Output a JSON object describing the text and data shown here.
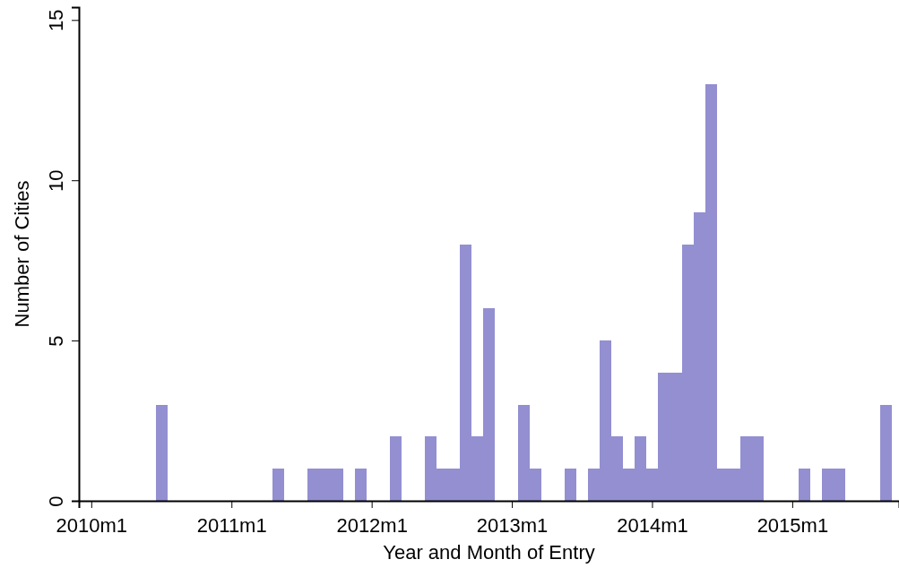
{
  "chart_data": {
    "type": "bar",
    "xlabel": "Year and Month of Entry",
    "ylabel": "Number of Cities",
    "color": "#938fd1",
    "categories": [
      "2010m1",
      null,
      null,
      null,
      null,
      null,
      null,
      null,
      null,
      null,
      null,
      null,
      "2011m1",
      null,
      null,
      null,
      null,
      null,
      null,
      null,
      null,
      null,
      null,
      null,
      "2012m1",
      null,
      null,
      null,
      null,
      null,
      null,
      null,
      null,
      null,
      null,
      null,
      "2013m1",
      null,
      null,
      null,
      null,
      null,
      null,
      null,
      null,
      null,
      null,
      null,
      "2014m1",
      null,
      null,
      null,
      null,
      null,
      null,
      null,
      null,
      null,
      null,
      null,
      "2015m1",
      null,
      null,
      null,
      null,
      null,
      null,
      null,
      null
    ],
    "values": [
      0,
      0,
      0,
      0,
      0,
      0,
      3,
      0,
      0,
      0,
      0,
      0,
      0,
      0,
      0,
      0,
      1,
      0,
      0,
      1,
      1,
      1,
      0,
      1,
      0,
      0,
      2,
      0,
      0,
      2,
      1,
      1,
      8,
      2,
      6,
      0,
      0,
      3,
      1,
      0,
      0,
      1,
      0,
      1,
      5,
      2,
      1,
      2,
      1,
      4,
      4,
      8,
      9,
      13,
      1,
      1,
      2,
      2,
      0,
      0,
      0,
      1,
      0,
      1,
      1,
      0,
      0,
      0,
      3
    ],
    "ylim": [
      0,
      15.4
    ],
    "yticks": [
      0,
      5,
      10,
      15
    ],
    "grid": false
  }
}
